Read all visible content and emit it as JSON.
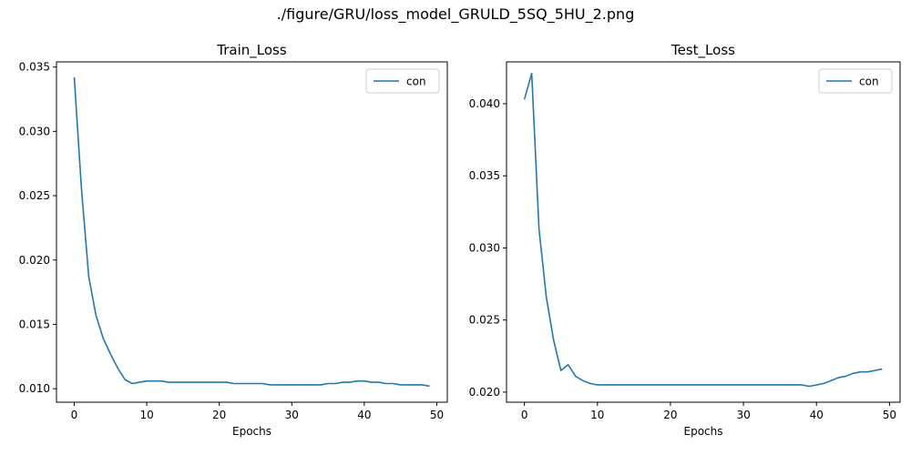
{
  "figure": {
    "title": "./figure/GRU/loss_model_GRULD_5SQ_5HU_2.png"
  },
  "chart_data": [
    {
      "type": "line",
      "title": "Train_Loss",
      "xlabel": "Epochs",
      "ylabel": "",
      "xlim": [
        -2.45,
        51.45
      ],
      "ylim": [
        0.00895,
        0.0354
      ],
      "xticks": [
        0,
        10,
        20,
        30,
        40,
        50
      ],
      "yticks": [
        0.01,
        0.015,
        0.02,
        0.025,
        0.03,
        0.035
      ],
      "ytick_labels": [
        "0.010",
        "0.015",
        "0.020",
        "0.025",
        "0.030",
        "0.035"
      ],
      "grid": false,
      "legend": "top-right",
      "series": [
        {
          "name": "con",
          "color": "#1f77b4",
          "x": [
            0,
            1,
            2,
            3,
            4,
            5,
            6,
            7,
            8,
            9,
            10,
            11,
            12,
            13,
            14,
            15,
            16,
            17,
            18,
            19,
            20,
            21,
            22,
            23,
            24,
            25,
            26,
            27,
            28,
            29,
            30,
            31,
            32,
            33,
            34,
            35,
            36,
            37,
            38,
            39,
            40,
            41,
            42,
            43,
            44,
            45,
            46,
            47,
            48,
            49
          ],
          "y": [
            0.0342,
            0.0255,
            0.0187,
            0.0157,
            0.0139,
            0.0127,
            0.0116,
            0.0107,
            0.0104,
            0.0105,
            0.0106,
            0.0106,
            0.0106,
            0.0105,
            0.0105,
            0.0105,
            0.0105,
            0.0105,
            0.0105,
            0.0105,
            0.0105,
            0.0105,
            0.0104,
            0.0104,
            0.0104,
            0.0104,
            0.0104,
            0.0103,
            0.0103,
            0.0103,
            0.0103,
            0.0103,
            0.0103,
            0.0103,
            0.0103,
            0.0104,
            0.0104,
            0.0105,
            0.0105,
            0.0106,
            0.0106,
            0.0105,
            0.0105,
            0.0104,
            0.0104,
            0.0103,
            0.0103,
            0.0103,
            0.0103,
            0.0102
          ]
        }
      ]
    },
    {
      "type": "line",
      "title": "Test_Loss",
      "xlabel": "Epochs",
      "ylabel": "",
      "xlim": [
        -2.45,
        51.45
      ],
      "ylim": [
        0.0193,
        0.0429
      ],
      "xticks": [
        0,
        10,
        20,
        30,
        40,
        50
      ],
      "yticks": [
        0.02,
        0.025,
        0.03,
        0.035,
        0.04
      ],
      "ytick_labels": [
        "0.020",
        "0.025",
        "0.030",
        "0.035",
        "0.040"
      ],
      "grid": false,
      "legend": "top-right",
      "series": [
        {
          "name": "con",
          "color": "#1f77b4",
          "x": [
            0,
            1,
            2,
            3,
            4,
            5,
            6,
            7,
            8,
            9,
            10,
            11,
            12,
            13,
            14,
            15,
            16,
            17,
            18,
            19,
            20,
            21,
            22,
            23,
            24,
            25,
            26,
            27,
            28,
            29,
            30,
            31,
            32,
            33,
            34,
            35,
            36,
            37,
            38,
            39,
            40,
            41,
            42,
            43,
            44,
            45,
            46,
            47,
            48,
            49
          ],
          "y": [
            0.0403,
            0.0421,
            0.0313,
            0.0266,
            0.0236,
            0.0215,
            0.0219,
            0.0211,
            0.0208,
            0.0206,
            0.0205,
            0.0205,
            0.0205,
            0.0205,
            0.0205,
            0.0205,
            0.0205,
            0.0205,
            0.0205,
            0.0205,
            0.0205,
            0.0205,
            0.0205,
            0.0205,
            0.0205,
            0.0205,
            0.0205,
            0.0205,
            0.0205,
            0.0205,
            0.0205,
            0.0205,
            0.0205,
            0.0205,
            0.0205,
            0.0205,
            0.0205,
            0.0205,
            0.0205,
            0.0204,
            0.0205,
            0.0206,
            0.0208,
            0.021,
            0.0211,
            0.0213,
            0.0214,
            0.0214,
            0.0215,
            0.0216
          ]
        }
      ]
    }
  ]
}
